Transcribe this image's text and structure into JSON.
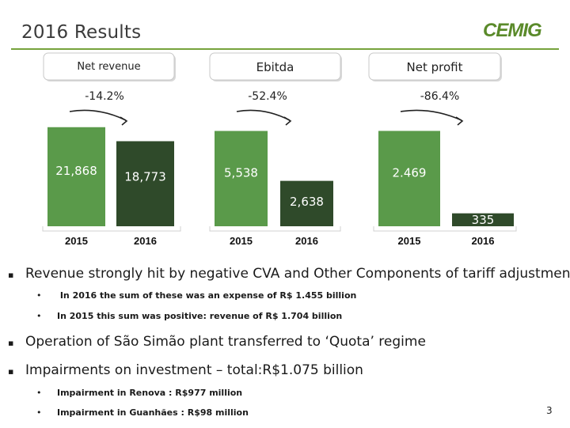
{
  "slide": {
    "title": "2016 Results",
    "page_number": "3",
    "logo_text": "CEMIG"
  },
  "colors": {
    "bar_2015": "#5a9a4a",
    "bar_2016": "#2f4a2a",
    "accent": "#76a33c"
  },
  "chart_data": [
    {
      "type": "bar",
      "title": "Net revenue",
      "change": "-14.2%",
      "categories": [
        "2015",
        "2016"
      ],
      "values": [
        21868,
        18773
      ],
      "value_labels": [
        "21,868",
        "18,773"
      ],
      "ylim": [
        0,
        22000
      ]
    },
    {
      "type": "bar",
      "title": "Ebitda",
      "change": "-52.4%",
      "categories": [
        "2015",
        "2016"
      ],
      "values": [
        5538,
        2638
      ],
      "value_labels": [
        "5,538",
        "2,638"
      ],
      "ylim": [
        0,
        5700
      ]
    },
    {
      "type": "bar",
      "title": "Net profit",
      "change": "-86.4%",
      "categories": [
        "2015",
        "2016"
      ],
      "values": [
        2469,
        335
      ],
      "value_labels": [
        "2.469",
        "335"
      ],
      "ylim": [
        0,
        2540
      ]
    }
  ],
  "bullets": [
    {
      "level": 1,
      "text": "Revenue strongly hit by negative CVA and Other Components of tariff adjustment"
    },
    {
      "level": 2,
      "text": " In 2016 the sum of these was an expense of R$ 1.455 billion"
    },
    {
      "level": 2,
      "text": "In 2015 this sum was positive:     revenue of  R$ 1.704 billion"
    },
    {
      "level": 1,
      "text": "Operation of São Simão plant transferred to ‘Quota’ regime"
    },
    {
      "level": 1,
      "text": "Impairments on investment – total:R$1.075 billion"
    },
    {
      "level": 2,
      "text": "Impairment in Renova :  R$977 million"
    },
    {
      "level": 2,
      "text": "Impairment in Guanhães : R$98 million"
    }
  ]
}
